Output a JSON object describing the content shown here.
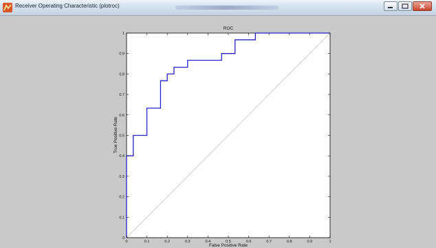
{
  "window": {
    "title": "Receiver Operating Characteristic (plotroc)",
    "icon": "matlab-figure-icon"
  },
  "controls": {
    "minimize": "minimize-icon",
    "maximize": "maximize-icon",
    "close": "close-icon"
  },
  "colors": {
    "roc_line": "#2222cc",
    "diagonal": "#c8c8c8",
    "axes_bg": "#ffffff",
    "figure_bg": "#c9c9c9"
  },
  "chart_data": {
    "type": "line",
    "title": "ROC",
    "xlabel": "False Positive Rate",
    "ylabel": "True Positive Rate",
    "xlim": [
      0,
      1
    ],
    "ylim": [
      0,
      1
    ],
    "xticks": [
      "0",
      "0.1",
      "0.2",
      "0.3",
      "0.4",
      "0.5",
      "0.6",
      "0.7",
      "0.8",
      "0.9",
      "1"
    ],
    "yticks": [
      "0",
      "0.1",
      "0.2",
      "0.3",
      "0.4",
      "0.5",
      "0.6",
      "0.7",
      "0.8",
      "0.9",
      "1"
    ],
    "grid": false,
    "series": [
      {
        "x": [
          0,
          0,
          0.033,
          0.033,
          0.1,
          0.1,
          0.167,
          0.167,
          0.2,
          0.2,
          0.233,
          0.233,
          0.3,
          0.3,
          0.467,
          0.467,
          0.533,
          0.533,
          0.633,
          0.633,
          1
        ],
        "y": [
          0,
          0.4,
          0.4,
          0.5,
          0.5,
          0.633,
          0.633,
          0.767,
          0.767,
          0.8,
          0.8,
          0.833,
          0.833,
          0.867,
          0.867,
          0.9,
          0.9,
          0.967,
          0.967,
          1,
          1
        ]
      },
      {
        "x": [
          0,
          1
        ],
        "y": [
          0,
          1
        ]
      }
    ]
  }
}
